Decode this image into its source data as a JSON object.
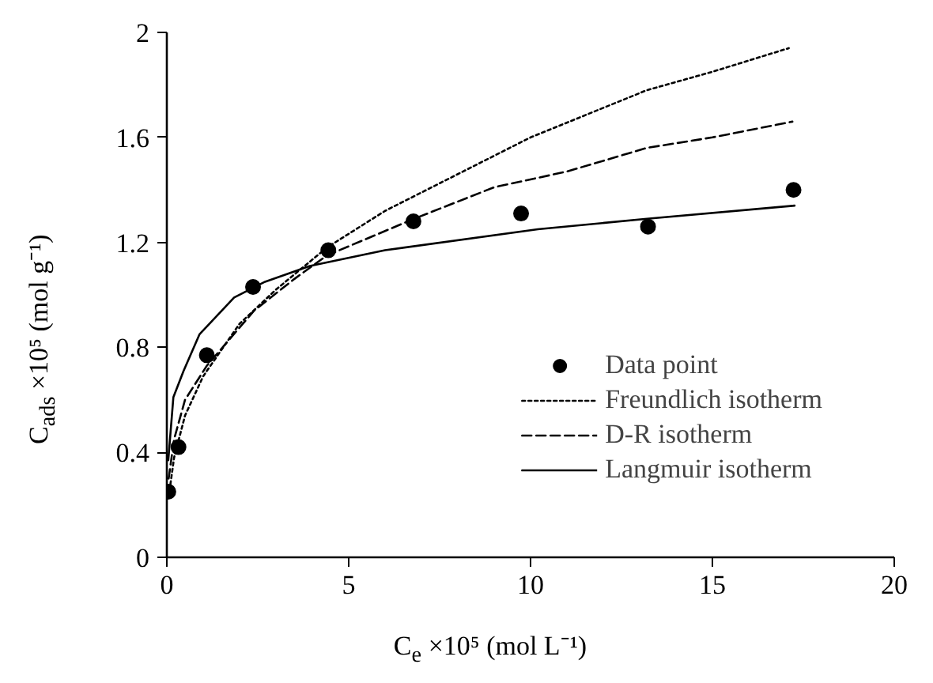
{
  "chart_data": {
    "type": "line",
    "xlabel": "C$_{e}$ ×10⁵ (mol L⁻¹)",
    "ylabel": "C$_{ads}$ ×10⁵ (mol g⁻¹)",
    "xlim": [
      0,
      20
    ],
    "ylim": [
      0,
      2
    ],
    "xticks": [
      0,
      5,
      10,
      15,
      20
    ],
    "yticks": [
      0,
      0.4,
      0.8,
      1.2,
      1.6,
      2
    ],
    "grid": false,
    "legend": "bottom right",
    "series": [
      {
        "name": "Data point",
        "type": "scatter",
        "marker": "circle",
        "color": "#000000",
        "x": [
          0.04,
          0.32,
          1.1,
          2.37,
          4.44,
          6.78,
          9.74,
          13.23,
          17.23
        ],
        "values": [
          0.25,
          0.42,
          0.77,
          1.03,
          1.17,
          1.28,
          1.31,
          1.26,
          1.4
        ]
      },
      {
        "name": "Freundlich isotherm",
        "line_style": "dotted",
        "color": "#000000",
        "x": [
          0.05,
          0.2,
          0.5,
          1,
          2,
          3,
          4.4,
          6,
          8,
          10,
          13.2,
          15,
          17.1
        ],
        "values": [
          0.23,
          0.38,
          0.54,
          0.69,
          0.89,
          1.02,
          1.18,
          1.32,
          1.46,
          1.6,
          1.78,
          1.85,
          1.94
        ]
      },
      {
        "name": "D-R isotherm",
        "line_style": "dashed",
        "color": "#000000",
        "x": [
          0.05,
          0.2,
          0.5,
          1.1,
          2.4,
          3.5,
          4.4,
          6.8,
          9,
          11,
          13.2,
          15,
          17.2
        ],
        "values": [
          0.3,
          0.45,
          0.6,
          0.73,
          0.94,
          1.06,
          1.15,
          1.29,
          1.41,
          1.47,
          1.56,
          1.6,
          1.66
        ]
      },
      {
        "name": "Langmuir isotherm",
        "line_style": "solid",
        "color": "#000000",
        "x": [
          0.04,
          0.18,
          0.46,
          0.9,
          1.85,
          2.7,
          3.93,
          6,
          10.2,
          13.2,
          17.26
        ],
        "values": [
          0.37,
          0.61,
          0.71,
          0.85,
          0.99,
          1.05,
          1.11,
          1.17,
          1.25,
          1.29,
          1.34
        ]
      }
    ]
  }
}
